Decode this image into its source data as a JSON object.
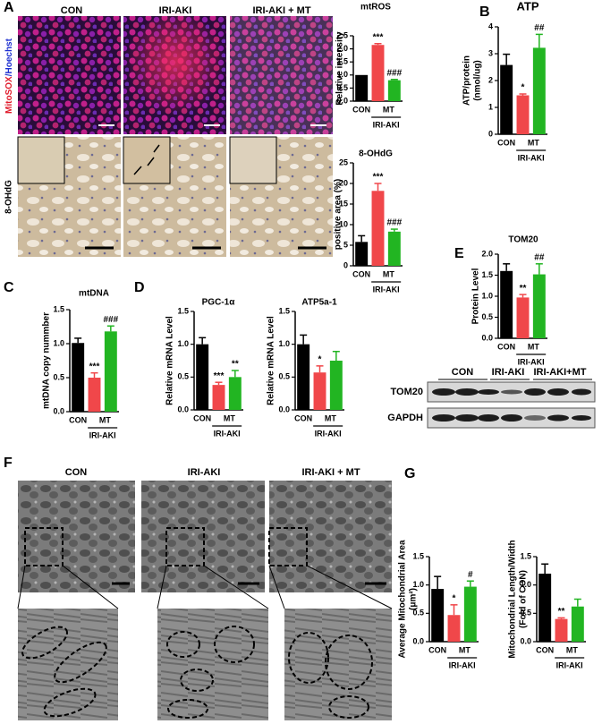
{
  "panel_labels": [
    "A",
    "B",
    "C",
    "D",
    "E",
    "F",
    "G"
  ],
  "panel_a": {
    "columns": [
      "CON",
      "IRI-AKI",
      "IRI-AKI + MT"
    ],
    "row_label_stain": "MitoSOX",
    "row_label_nuclei": "/Hoechst",
    "row_label_ihc": "8-OHdG"
  },
  "blot": {
    "groups": [
      "CON",
      "IRI-AKI",
      "IRI-AKI+MT"
    ],
    "rows": [
      "TOM20",
      "GAPDH"
    ]
  },
  "panel_f": {
    "columns": [
      "CON",
      "IRI-AKI",
      "IRI-AKI + MT"
    ]
  },
  "chart_data": [
    {
      "type": "bar",
      "title": "mtROS",
      "y_label": [
        "Relative intensity"
      ],
      "categories": [
        "CON",
        null,
        "MT"
      ],
      "group_label": "IRI-AKI",
      "values": [
        1.0,
        2.15,
        0.8
      ],
      "errors": [
        0,
        0.05,
        0.03
      ],
      "sig_labels": [
        null,
        "***",
        "###"
      ],
      "colors": [
        "#000000",
        "#f0474a",
        "#22b522"
      ],
      "ylim": [
        0,
        2.5
      ],
      "yticks": [
        {
          "value": 0,
          "label": "0.0"
        },
        0.5,
        {
          "value": 1,
          "label": "1.0"
        },
        1.5,
        {
          "value": 2,
          "label": "2.0"
        },
        2.5
      ]
    },
    {
      "type": "bar",
      "title": "8-OHdG",
      "y_label": [
        "positive area (%)"
      ],
      "categories": [
        "CON",
        null,
        "MT"
      ],
      "group_label": "IRI-AKI",
      "values": [
        5.8,
        18.2,
        8.3
      ],
      "errors": [
        1.5,
        1.8,
        0.6
      ],
      "sig_labels": [
        null,
        "***",
        "###"
      ],
      "colors": [
        "#000000",
        "#f0474a",
        "#22b522"
      ],
      "ylim": [
        0,
        25
      ],
      "yticks": [
        0,
        5,
        10,
        15,
        20,
        25
      ]
    },
    {
      "type": "bar",
      "title": "ATP",
      "y_label": [
        "ATP/protein",
        "(nmol/ug)"
      ],
      "categories": [
        "CON",
        null,
        "MT"
      ],
      "group_label": "IRI-AKI",
      "values": [
        2.58,
        1.45,
        3.22
      ],
      "errors": [
        0.4,
        0.05,
        0.5
      ],
      "sig_labels": [
        null,
        "*",
        "##"
      ],
      "colors": [
        "#000000",
        "#f0474a",
        "#22b522"
      ],
      "ylim": [
        0,
        4
      ],
      "yticks": [
        0,
        1,
        2,
        3,
        4
      ]
    },
    {
      "type": "bar",
      "title": "mtDNA",
      "y_label": [
        "mtDNA copy nummber"
      ],
      "categories": [
        "CON",
        null,
        "MT"
      ],
      "group_label": "IRI-AKI",
      "values": [
        1.01,
        0.5,
        1.18
      ],
      "errors": [
        0.07,
        0.07,
        0.08
      ],
      "sig_labels": [
        null,
        "***",
        "###"
      ],
      "colors": [
        "#000000",
        "#f0474a",
        "#22b522"
      ],
      "ylim": [
        0,
        1.5
      ],
      "yticks": [
        {
          "value": 0,
          "label": "0.0"
        },
        0.5,
        {
          "value": 1,
          "label": "1.0"
        },
        1.5
      ]
    },
    {
      "type": "bar",
      "title": "PGC-1α",
      "y_label": [
        "Relative mRNA Level"
      ],
      "categories": [
        "CON",
        null,
        "MT"
      ],
      "group_label": "IRI-AKI",
      "values": [
        1.0,
        0.38,
        0.5
      ],
      "errors": [
        0.1,
        0.04,
        0.1
      ],
      "sig_labels": [
        null,
        "***",
        "**"
      ],
      "colors": [
        "#000000",
        "#f0474a",
        "#22b522"
      ],
      "ylim": [
        0,
        1.5
      ],
      "yticks": [
        {
          "value": 0,
          "label": "0.0"
        },
        0.5,
        {
          "value": 1,
          "label": "1.0"
        },
        1.5
      ]
    },
    {
      "type": "bar",
      "title": "ATP5a-1",
      "y_label": [
        "Relative mRNA Level"
      ],
      "categories": [
        "CON",
        null,
        "MT"
      ],
      "group_label": "IRI-AKI",
      "values": [
        1.0,
        0.57,
        0.75
      ],
      "errors": [
        0.14,
        0.1,
        0.14
      ],
      "sig_labels": [
        null,
        "*",
        null
      ],
      "colors": [
        "#000000",
        "#f0474a",
        "#22b522"
      ],
      "ylim": [
        0,
        1.5
      ],
      "yticks": [
        {
          "value": 0,
          "label": "0.0"
        },
        0.5,
        {
          "value": 1,
          "label": "1.0"
        },
        1.5
      ]
    },
    {
      "type": "bar",
      "title": "TOM20",
      "y_label": [
        "Protein Level"
      ],
      "categories": [
        "CON",
        null,
        "MT"
      ],
      "group_label": "IRI-AKI",
      "values": [
        1.6,
        0.97,
        1.52
      ],
      "errors": [
        0.17,
        0.07,
        0.25
      ],
      "sig_labels": [
        null,
        "**",
        "##"
      ],
      "colors": [
        "#000000",
        "#f0474a",
        "#22b522"
      ],
      "ylim": [
        0,
        2
      ],
      "yticks": [
        {
          "value": 0,
          "label": "0.0"
        },
        0.5,
        {
          "value": 1,
          "label": "1.0"
        },
        1.5,
        {
          "value": 2,
          "label": "2.0"
        }
      ]
    },
    {
      "type": "bar",
      "y_label": [
        "Average Mitochondrial Area",
        "(μm²)"
      ],
      "categories": [
        "CON",
        null,
        "MT"
      ],
      "group_label": "IRI-AKI",
      "values": [
        0.93,
        0.47,
        0.97
      ],
      "errors": [
        0.22,
        0.18,
        0.1
      ],
      "sig_labels": [
        null,
        "*",
        "#"
      ],
      "colors": [
        "#000000",
        "#f0474a",
        "#22b522"
      ],
      "ylim": [
        0,
        1.5
      ],
      "yticks": [
        {
          "value": 0,
          "label": "0.0"
        },
        0.5,
        {
          "value": 1,
          "label": "1.0"
        },
        1.5
      ]
    },
    {
      "type": "bar",
      "y_label": [
        "Mitochondrial Length/Width",
        "(Fold of CON)"
      ],
      "categories": [
        "CON",
        null,
        "MT"
      ],
      "group_label": "IRI-AKI",
      "values": [
        1.2,
        0.4,
        0.62
      ],
      "errors": [
        0.17,
        0.02,
        0.13
      ],
      "sig_labels": [
        null,
        "**",
        null
      ],
      "colors": [
        "#000000",
        "#f0474a",
        "#22b522"
      ],
      "ylim": [
        0,
        1.5
      ],
      "yticks": [
        {
          "value": 0,
          "label": "0.0"
        },
        0.5,
        {
          "value": 1,
          "label": "1.0"
        },
        1.5
      ]
    }
  ]
}
